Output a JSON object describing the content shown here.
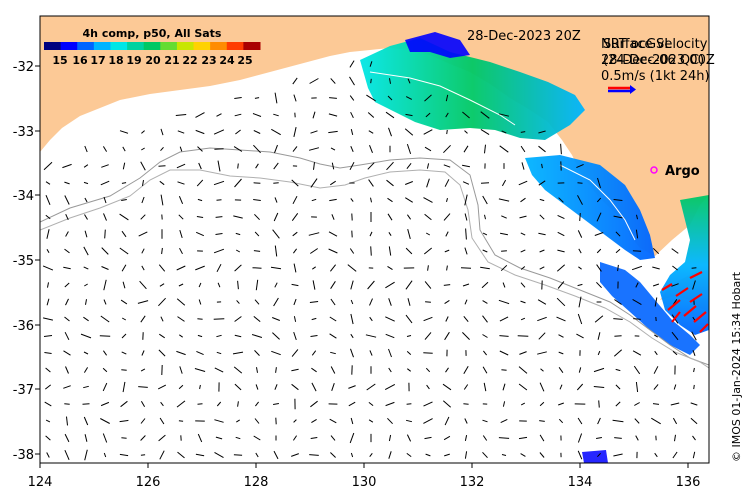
{
  "map": {
    "date_label": "28-Dec-2023 20Z",
    "credit": "© IMOS 01-Jan-2024 15:34 Hobart",
    "x_ticks": [
      "124",
      "126",
      "128",
      "130",
      "132",
      "134",
      "136"
    ],
    "y_ticks": [
      "-32",
      "-33",
      "-34",
      "-35",
      "-36",
      "-37",
      "-38"
    ],
    "lon_range": [
      124,
      136.5
    ],
    "lat_range": [
      -38.1,
      -31.2
    ],
    "colors": {
      "land": "#fcc996",
      "ocean": "#ffffff",
      "vector": "#000000",
      "argo": "#ff00ff",
      "coastline_contour": "#999999"
    }
  },
  "colorbar": {
    "title": "4h comp, p50, All Sats",
    "ticks": [
      "15",
      "16",
      "17",
      "18",
      "19",
      "20",
      "21",
      "22",
      "23",
      "24",
      "25"
    ],
    "colors": [
      "#00007f",
      "#0000ff",
      "#0064ff",
      "#00b4ff",
      "#00e6e6",
      "#00d2a0",
      "#00c864",
      "#64dc32",
      "#c8e600",
      "#ffd200",
      "#ff8c00",
      "#ff3c00",
      "#aa0000"
    ]
  },
  "legend": {
    "overlap_line_1a": "NRT ocGSL",
    "overlap_line_1b": "Surface velocity",
    "overlap_line_2a": "28-Dec-2023 00Z",
    "overlap_line_2b": "(24-Dec-06 QC)",
    "scale_label": "0.5m/s (1kt 24h)",
    "arrow_colors": [
      "#ff0000",
      "#0000ff"
    ]
  },
  "argo": {
    "label": "Argo",
    "lon": 135.5,
    "lat": -33.6
  }
}
